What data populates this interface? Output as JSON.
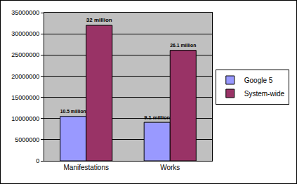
{
  "chart_data": {
    "type": "bar",
    "categories": [
      "Manifestations",
      "Works"
    ],
    "series": [
      {
        "name": "Google 5",
        "color": "#9999ff",
        "values": [
          10500000,
          9100000
        ],
        "value_labels": [
          "10.5 million",
          "9.1 million"
        ]
      },
      {
        "name": "System-wide",
        "color": "#993366",
        "values": [
          32000000,
          26100000
        ],
        "value_labels": [
          "32 million",
          "26.1 million"
        ]
      }
    ],
    "ylim": [
      0,
      35000000
    ],
    "yticks": [
      0,
      5000000,
      10000000,
      15000000,
      20000000,
      25000000,
      30000000,
      35000000
    ],
    "grid": true,
    "legend": "right",
    "data_labels": true
  }
}
